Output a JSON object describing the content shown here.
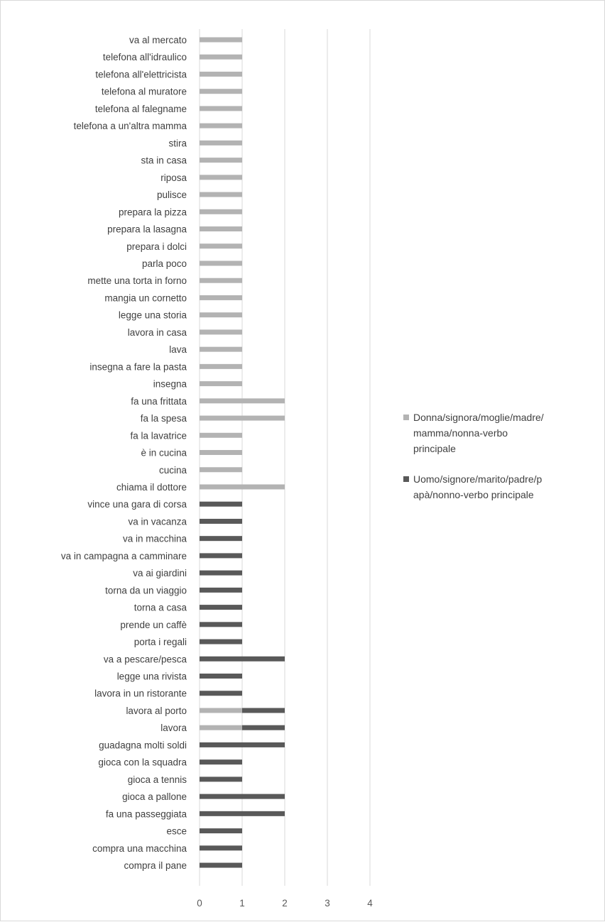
{
  "chart_data": {
    "type": "bar",
    "orientation": "horizontal",
    "stacked": true,
    "title": "",
    "xlabel": "",
    "ylabel": "",
    "xlim": [
      0,
      4
    ],
    "x_ticks": [
      "0",
      "1",
      "2",
      "3",
      "4"
    ],
    "grid": "vertical",
    "legend_position": "right",
    "categories": [
      "va al mercato",
      "telefona all'idraulico",
      "telefona all'elettricista",
      "telefona al muratore",
      "telefona al falegname",
      "telefona a un'altra mamma",
      "stira",
      "sta in casa",
      "riposa",
      "pulisce",
      "prepara la pizza",
      "prepara la lasagna",
      "prepara i dolci",
      "parla poco",
      "mette una torta in forno",
      "mangia un cornetto",
      "legge una storia",
      "lavora in casa",
      "lava",
      "insegna a fare la pasta",
      "insegna",
      "fa una frittata",
      "fa la spesa",
      "fa la lavatrice",
      "è in cucina",
      "cucina",
      "chiama il dottore",
      "vince una gara di corsa",
      "va in vacanza",
      "va in macchina",
      "va in campagna a camminare",
      "va ai giardini",
      "torna da un viaggio",
      "torna a casa",
      "prende un caffè",
      "porta i regali",
      "va a pescare/pesca",
      "legge una rivista",
      "lavora in un ristorante",
      "lavora al porto",
      "lavora",
      "guadagna molti soldi",
      "gioca con la squadra",
      "gioca a tennis",
      "gioca a pallone",
      "fa una passeggiata",
      "esce",
      "compra una macchina",
      "compra il pane"
    ],
    "series": [
      {
        "name": "Donna/signora/moglie/madre/mamma/nonna-verbo principale",
        "color": "#b3b3b3",
        "values": [
          1,
          1,
          1,
          1,
          1,
          1,
          1,
          1,
          1,
          1,
          1,
          1,
          1,
          1,
          1,
          1,
          1,
          1,
          1,
          1,
          1,
          2,
          2,
          1,
          1,
          1,
          2,
          0,
          0,
          0,
          0,
          0,
          0,
          0,
          0,
          0,
          0,
          0,
          0,
          1,
          1,
          0,
          0,
          0,
          0,
          0,
          0,
          0,
          0
        ]
      },
      {
        "name": "Uomo/signore/marito/padre/papà/nonno-verbo principale",
        "color": "#595959",
        "values": [
          0,
          0,
          0,
          0,
          0,
          0,
          0,
          0,
          0,
          0,
          0,
          0,
          0,
          0,
          0,
          0,
          0,
          0,
          0,
          0,
          0,
          0,
          0,
          0,
          0,
          0,
          0,
          1,
          1,
          1,
          1,
          1,
          1,
          1,
          1,
          1,
          2,
          1,
          1,
          1,
          1,
          2,
          1,
          1,
          2,
          2,
          1,
          1,
          1
        ]
      }
    ]
  },
  "legend": {
    "female_lines": [
      "Donna/signora/moglie/madre/",
      "mamma/nonna-verbo",
      "principale"
    ],
    "male_lines": [
      "Uomo/signore/marito/padre/p",
      "apà/nonno-verbo principale"
    ]
  }
}
